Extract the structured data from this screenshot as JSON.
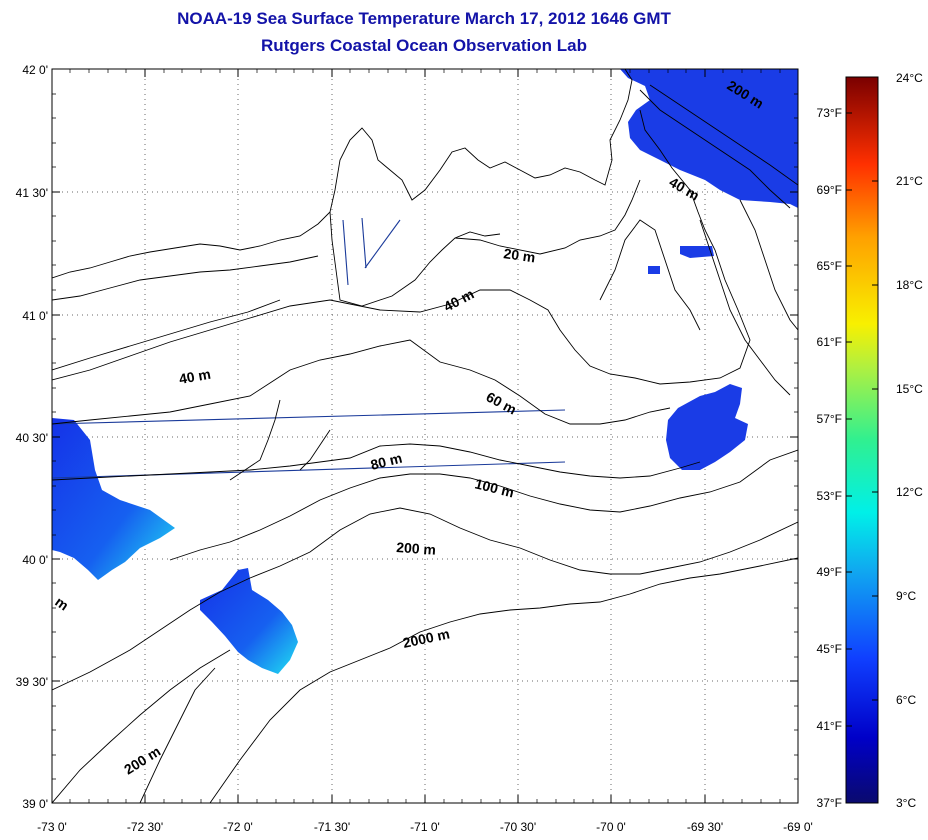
{
  "title": "NOAA-19 Sea Surface Temperature March 17, 2012 1646 GMT",
  "subtitle": "Rutgers Coastal Ocean Observation Lab",
  "lat_labels": [
    "42 0'",
    "41 30'",
    "41 0'",
    "40 30'",
    "40 0'",
    "39 30'",
    "39 0'"
  ],
  "lon_labels": [
    "-73 0'",
    "-72 30'",
    "-72 0'",
    "-71 30'",
    "-71 0'",
    "-70 30'",
    "-70 0'",
    "-69 30'",
    "-69 0'"
  ],
  "contour_labels": [
    "20 m",
    "40 m",
    "40 m",
    "60 m",
    "80 m",
    "100 m",
    "200 m",
    "2000 m",
    "200 m",
    "200 m",
    "40 m",
    "m"
  ],
  "colorbar": {
    "celsius_labels": [
      "24°C",
      "21°C",
      "18°C",
      "15°C",
      "12°C",
      "9°C",
      "6°C",
      "3°C"
    ],
    "fahrenheit_labels": [
      "73°F",
      "69°F",
      "65°F",
      "61°F",
      "57°F",
      "53°F",
      "49°F",
      "45°F",
      "41°F",
      "37°F"
    ]
  },
  "colors": {
    "title": "#1313a8",
    "sst_patch": "#1a3ce6",
    "sst_patch_warm": "#1fd8f0",
    "track": "#1a3a9a"
  }
}
